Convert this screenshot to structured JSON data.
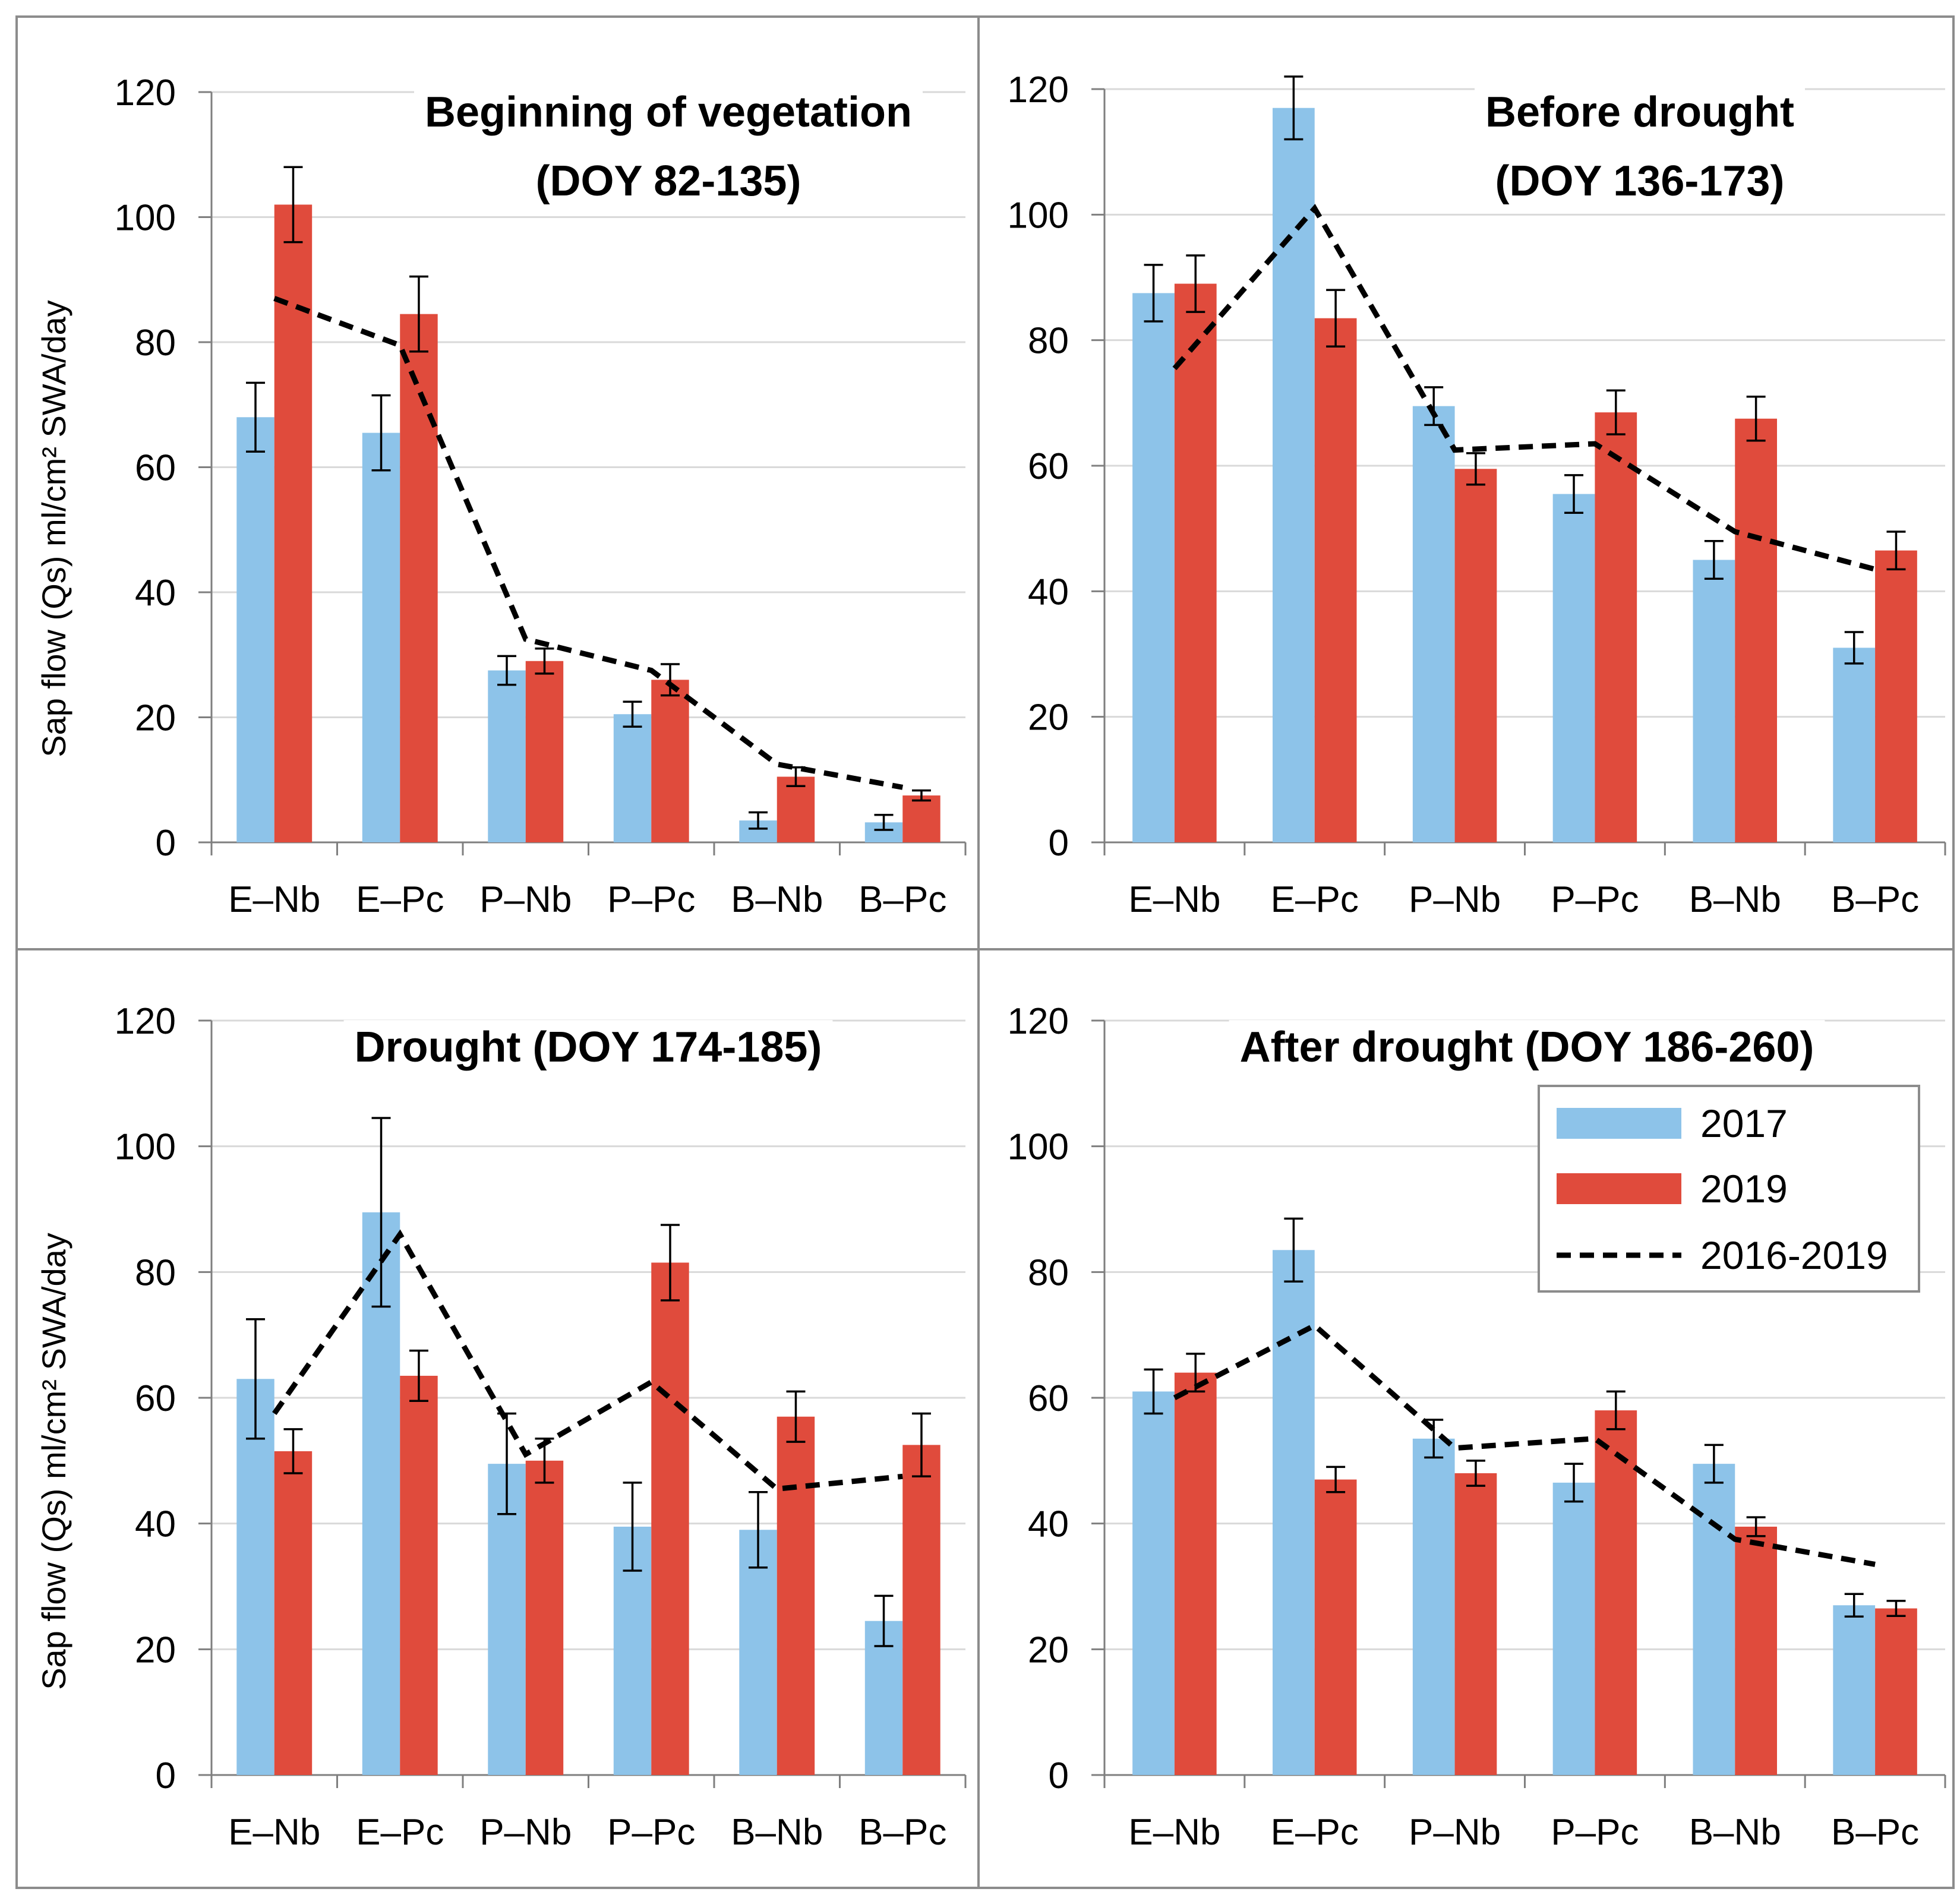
{
  "figure": {
    "ylabel": "Sap flow (Qs) ml/cm² SWA/day",
    "colors": {
      "2017": "#8dc3e9",
      "2019": "#e04b3c",
      "mean": "#000000",
      "grid": "#d9d9d9",
      "frame": "#7f7f7f"
    }
  },
  "legend": {
    "entries": [
      {
        "label": "2017",
        "kind": "bar",
        "color": "#8dc3e9"
      },
      {
        "label": "2019",
        "kind": "bar",
        "color": "#e04b3c"
      },
      {
        "label": "2016-2019",
        "kind": "dashed-line",
        "color": "#000000"
      }
    ],
    "placement": "top-right of bottom-right panel"
  },
  "chart_data": [
    {
      "type": "bar",
      "title": [
        "Beginning of vegetation",
        "(DOY 82-135)"
      ],
      "ylabel": "Sap flow (Qs) ml/cm² SWA/day",
      "ylim": [
        0,
        120
      ],
      "yticks": [
        0,
        20,
        40,
        60,
        80,
        100,
        120
      ],
      "categories": [
        "E–Nb",
        "E–Pc",
        "P–Nb",
        "P–Pc",
        "B–Nb",
        "B–Pc"
      ],
      "series": [
        {
          "name": "2017",
          "values": [
            68,
            65.5,
            27.5,
            20.5,
            3.5,
            3.2
          ],
          "errors": [
            5.5,
            6,
            2.3,
            2,
            1.3,
            1.2
          ]
        },
        {
          "name": "2019",
          "values": [
            102,
            84.5,
            29,
            26,
            10.5,
            7.5
          ],
          "errors": [
            6,
            6,
            2,
            2.5,
            1.5,
            0.8
          ]
        }
      ],
      "line": {
        "name": "2016-2019",
        "values": [
          87,
          79.5,
          32.5,
          27.5,
          12.5,
          8.8
        ]
      }
    },
    {
      "type": "bar",
      "title": [
        "Before drought",
        "(DOY 136-173)"
      ],
      "ylabel": "",
      "ylim": [
        0,
        120
      ],
      "yticks": [
        0,
        20,
        40,
        60,
        80,
        100,
        120
      ],
      "categories": [
        "E–Nb",
        "E–Pc",
        "P–Nb",
        "P–Pc",
        "B–Nb",
        "B–Pc"
      ],
      "series": [
        {
          "name": "2017",
          "values": [
            87.5,
            117,
            69.5,
            55.5,
            45,
            31
          ],
          "errors": [
            4.5,
            5,
            3,
            3,
            3,
            2.5
          ]
        },
        {
          "name": "2019",
          "values": [
            89,
            83.5,
            59.5,
            68.5,
            67.5,
            46.5
          ],
          "errors": [
            4.5,
            4.5,
            2.5,
            3.5,
            3.5,
            3
          ]
        }
      ],
      "line": {
        "name": "2016-2019",
        "values": [
          75.5,
          101,
          62.5,
          63.5,
          49.5,
          43.5
        ]
      }
    },
    {
      "type": "bar",
      "title": [
        "Drought (DOY 174-185)"
      ],
      "ylabel": "Sap flow (Qs) ml/cm² SWA/day",
      "ylim": [
        0,
        120
      ],
      "yticks": [
        0,
        20,
        40,
        60,
        80,
        100,
        120
      ],
      "categories": [
        "E–Nb",
        "E–Pc",
        "P–Nb",
        "P–Pc",
        "B–Nb",
        "B–Pc"
      ],
      "series": [
        {
          "name": "2017",
          "values": [
            63,
            89.5,
            49.5,
            39.5,
            39,
            24.5
          ],
          "errors": [
            9.5,
            15,
            8,
            7,
            6,
            4
          ]
        },
        {
          "name": "2019",
          "values": [
            51.5,
            63.5,
            50,
            81.5,
            57,
            52.5
          ],
          "errors": [
            3.5,
            4,
            3.5,
            6,
            4,
            5
          ]
        }
      ],
      "line": {
        "name": "2016-2019",
        "values": [
          57.5,
          86,
          51,
          62.5,
          45.5,
          47.5
        ]
      }
    },
    {
      "type": "bar",
      "title": [
        "After drought (DOY 186-260)"
      ],
      "ylabel": "",
      "ylim": [
        0,
        120
      ],
      "yticks": [
        0,
        20,
        40,
        60,
        80,
        100,
        120
      ],
      "categories": [
        "E–Nb",
        "E–Pc",
        "P–Nb",
        "P–Pc",
        "B–Nb",
        "B–Pc"
      ],
      "series": [
        {
          "name": "2017",
          "values": [
            61,
            83.5,
            53.5,
            46.5,
            49.5,
            27
          ],
          "errors": [
            3.5,
            5,
            3,
            3,
            3,
            1.8
          ]
        },
        {
          "name": "2019",
          "values": [
            64,
            47,
            48,
            58,
            39.5,
            26.5
          ],
          "errors": [
            3,
            2,
            2,
            3,
            1.5,
            1.2
          ]
        }
      ],
      "line": {
        "name": "2016-2019",
        "values": [
          60,
          71.5,
          52,
          53.5,
          37.5,
          33.5
        ]
      }
    }
  ]
}
